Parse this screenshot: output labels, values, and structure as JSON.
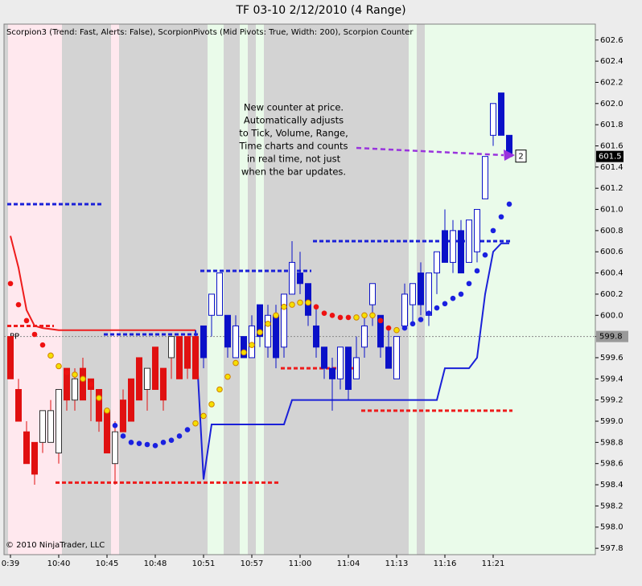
{
  "chart_data": {
    "type": "candlestick",
    "title": "TF 03-10  2/12/2010 (4 Range)",
    "indicator_label": "Scorpion3 (Trend: Fast, Alerts: False), ScorpionPivots (Mid Pivots: True, Width: 200), Scorpion Counter",
    "copyright": "© 2010 NinjaTrader, LLC",
    "annotation": [
      "New counter at price.",
      "Automatically adjusts",
      "to Tick, Volume, Range,",
      "Time charts and counts",
      "in real time, not just",
      "when the bar updates."
    ],
    "counter": 2,
    "last_price": 601.5,
    "pivot_pp": {
      "label": "PP",
      "value": 599.8
    },
    "categories": [
      "0:39",
      null,
      null,
      null,
      null,
      null,
      "10:40",
      null,
      null,
      null,
      null,
      null,
      "10:45",
      null,
      null,
      null,
      null,
      null,
      "10:48",
      null,
      null,
      null,
      null,
      null,
      "10:51",
      null,
      null,
      null,
      null,
      null,
      "10:57",
      null,
      null,
      null,
      null,
      null,
      "11:00",
      null,
      null,
      null,
      null,
      null,
      "11:04",
      null,
      null,
      null,
      null,
      null,
      "11:13",
      null,
      null,
      null,
      null,
      null,
      "11:16",
      null,
      null,
      null,
      null,
      null,
      "11:21",
      null,
      null
    ],
    "open": [
      599.8,
      599.3,
      598.9,
      598.8,
      598.8,
      598.8,
      598.7,
      599.5,
      599.2,
      599.5,
      599.4,
      599.3,
      599.1,
      598.6,
      599.2,
      599.4,
      599.6,
      599.3,
      599.7,
      599.5,
      599.6,
      599.8,
      599.8,
      599.8,
      599.9,
      600.0,
      600.0,
      600.0,
      599.6,
      599.8,
      599.6,
      600.1,
      599.7,
      600.0,
      599.7,
      600.2,
      600.4,
      600.3,
      599.9,
      599.7,
      599.5,
      599.4,
      599.7,
      599.4,
      599.7,
      600.1,
      600.0,
      599.7,
      599.4,
      599.9,
      600.1,
      600.4,
      600.0,
      600.4,
      600.8,
      600.5,
      600.8,
      600.5,
      600.6,
      601.1,
      601.7,
      602.1,
      601.7
    ],
    "high": [
      599.8,
      599.4,
      599.0,
      598.8,
      599.1,
      599.2,
      599.3,
      599.5,
      599.5,
      599.6,
      599.4,
      599.3,
      599.1,
      599.0,
      599.3,
      599.4,
      599.6,
      599.5,
      599.7,
      599.5,
      599.8,
      599.8,
      599.8,
      599.8,
      599.9,
      600.2,
      600.4,
      600.0,
      600.0,
      599.8,
      600.0,
      600.1,
      600.1,
      600.1,
      600.2,
      600.7,
      600.6,
      600.3,
      600.1,
      599.7,
      599.6,
      599.7,
      599.7,
      599.8,
      600.0,
      600.3,
      600.0,
      599.9,
      599.8,
      600.3,
      600.3,
      600.5,
      600.4,
      600.6,
      601.0,
      600.9,
      600.9,
      600.9,
      601.0,
      601.5,
      602.0,
      602.1,
      601.7
    ],
    "low": [
      599.4,
      599.0,
      598.6,
      598.4,
      598.7,
      598.8,
      598.6,
      599.1,
      599.1,
      599.2,
      599.0,
      598.9,
      598.7,
      598.4,
      598.9,
      599.0,
      599.2,
      599.1,
      599.3,
      599.1,
      599.4,
      599.4,
      599.4,
      599.4,
      599.5,
      599.8,
      600.0,
      599.6,
      599.6,
      599.6,
      599.6,
      599.7,
      599.6,
      599.5,
      599.6,
      600.2,
      600.2,
      599.9,
      599.6,
      599.4,
      599.1,
      599.3,
      599.2,
      599.4,
      599.6,
      599.9,
      599.6,
      599.5,
      599.4,
      599.9,
      599.9,
      600.0,
      599.9,
      600.2,
      600.5,
      600.4,
      600.4,
      600.5,
      600.5,
      601.1,
      601.6,
      601.7,
      601.5
    ],
    "close": [
      599.4,
      599.0,
      598.6,
      598.5,
      599.1,
      599.1,
      599.3,
      599.2,
      599.4,
      599.2,
      599.3,
      599.0,
      598.7,
      598.9,
      598.9,
      599.0,
      599.2,
      599.5,
      599.3,
      599.2,
      599.8,
      599.4,
      599.5,
      599.4,
      599.6,
      600.2,
      600.4,
      599.7,
      599.9,
      599.6,
      599.9,
      599.8,
      600.0,
      599.6,
      600.2,
      600.5,
      600.3,
      600.0,
      599.7,
      599.5,
      599.4,
      599.7,
      599.3,
      599.6,
      599.9,
      600.3,
      599.7,
      599.5,
      599.8,
      600.2,
      600.3,
      600.1,
      600.4,
      600.6,
      600.5,
      600.8,
      600.4,
      600.9,
      601.0,
      601.5,
      602.0,
      601.7,
      601.5
    ],
    "candle_colors": [
      "#e01010",
      "#e01010",
      "#e01010",
      "#e01010",
      "#e01010",
      "#e01010",
      "#e01010",
      "#e01010",
      "#e01010",
      "#e01010",
      "#e01010",
      "#e01010",
      "#e01010",
      "#e01010",
      "#e01010",
      "#e01010",
      "#e01010",
      "#e01010",
      "#e01010",
      "#e01010",
      "#e01010",
      "#e01010",
      "#e01010",
      "#e01010",
      "#0a10c8",
      "#0a10c8",
      "#0a10c8",
      "#0a10c8",
      "#0a10c8",
      "#0a10c8",
      "#0a10c8",
      "#0a10c8",
      "#0a10c8",
      "#0a10c8",
      "#0a10c8",
      "#0a10c8",
      "#0a10c8",
      "#0a10c8",
      "#0a10c8",
      "#0a10c8",
      "#0a10c8",
      "#0a10c8",
      "#0a10c8",
      "#0a10c8",
      "#0a10c8",
      "#0a10c8",
      "#0a10c8",
      "#0a10c8",
      "#0a10c8",
      "#0a10c8",
      "#0a10c8",
      "#0a10c8",
      "#0a10c8",
      "#0a10c8",
      "#0a10c8",
      "#0a10c8",
      "#0a10c8",
      "#0a10c8",
      "#0a10c8",
      "#0a10c8",
      "#0a10c8",
      "#0a10c8",
      "#0a10c8"
    ],
    "lines": [
      {
        "color": "#ee1c1c",
        "values": [
          600.75,
          600.45,
          600.05,
          599.9,
          599.88,
          599.87,
          599.86,
          599.86,
          599.86,
          599.86,
          599.86,
          599.86,
          599.86,
          599.86,
          599.86,
          599.86,
          599.86,
          599.86,
          599.86,
          599.86,
          599.86,
          599.86,
          599.86,
          599.86,
          null,
          null,
          null,
          null,
          null,
          null,
          null,
          null,
          null,
          null,
          null,
          null,
          null,
          null,
          null,
          null,
          null,
          null,
          null,
          null,
          null,
          null,
          null,
          null,
          null,
          null,
          null,
          null,
          null,
          null,
          null,
          null,
          null,
          null,
          null,
          null,
          null,
          null,
          null
        ]
      },
      {
        "color": "#1a20d8",
        "values": [
          null,
          null,
          null,
          null,
          null,
          null,
          null,
          null,
          null,
          null,
          null,
          null,
          null,
          null,
          null,
          null,
          null,
          null,
          null,
          null,
          null,
          null,
          null,
          599.86,
          598.45,
          598.97,
          598.97,
          598.97,
          598.97,
          598.97,
          598.97,
          598.97,
          598.97,
          598.97,
          598.97,
          599.2,
          599.2,
          599.2,
          599.2,
          599.2,
          599.2,
          599.2,
          599.2,
          599.2,
          599.2,
          599.2,
          599.2,
          599.2,
          599.2,
          599.2,
          599.2,
          599.2,
          599.2,
          599.2,
          599.5,
          599.5,
          599.5,
          599.5,
          599.6,
          600.2,
          600.6,
          600.68,
          600.68
        ]
      }
    ],
    "dots": {
      "values": [
        600.3,
        600.1,
        599.95,
        599.82,
        599.72,
        599.62,
        599.52,
        599.46,
        599.44,
        599.4,
        599.35,
        599.22,
        599.1,
        598.96,
        598.86,
        598.8,
        598.79,
        598.78,
        598.77,
        598.8,
        598.82,
        598.86,
        598.92,
        598.98,
        599.05,
        599.16,
        599.3,
        599.42,
        599.55,
        599.65,
        599.72,
        599.84,
        599.92,
        600.0,
        600.08,
        600.1,
        600.12,
        600.12,
        600.08,
        600.02,
        600.0,
        599.98,
        599.98,
        599.98,
        600.0,
        600.0,
        599.95,
        599.88,
        599.86,
        599.88,
        599.92,
        599.96,
        600.02,
        600.07,
        600.11,
        600.16,
        600.2,
        600.3,
        600.42,
        600.57,
        600.8,
        600.93,
        601.05
      ],
      "colors": [
        "#ee1111",
        "#ee1111",
        "#ee1111",
        "#ee1111",
        "#ee1111",
        "#f5e000",
        "#f5e000",
        "#ee1111",
        "#f5e000",
        "#f5e000",
        "#ee1111",
        "#f5e000",
        "#f5e000",
        "#1a20e0",
        "#1a20e0",
        "#1a20e0",
        "#1a20e0",
        "#1a20e0",
        "#1a20e0",
        "#1a20e0",
        "#1a20e0",
        "#1a20e0",
        "#1a20e0",
        "#f5e000",
        "#f5e000",
        "#f5e000",
        "#f5e000",
        "#f5e000",
        "#f5e000",
        "#f5e000",
        "#f5e000",
        "#f5e000",
        "#f5e000",
        "#f5e000",
        "#f5e000",
        "#f5e000",
        "#f5e000",
        "#f5e000",
        "#ee1111",
        "#ee1111",
        "#ee1111",
        "#ee1111",
        "#ee1111",
        "#f5e000",
        "#f5e000",
        "#f5e000",
        "#ee1111",
        "#ee1111",
        "#f5e000",
        "#1a20e0",
        "#1a20e0",
        "#1a20e0",
        "#1a20e0",
        "#1a20e0",
        "#1a20e0",
        "#1a20e0",
        "#1a20e0",
        "#1a20e0",
        "#1a20e0",
        "#1a20e0",
        "#1a20e0",
        "#1a20e0",
        "#1a20e0"
      ]
    },
    "levels": [
      {
        "value": 601.05,
        "from": 0,
        "to": 11,
        "color": "#1a20d8"
      },
      {
        "value": 599.9,
        "from": 0,
        "to": 5,
        "color": "#ee1c1c"
      },
      {
        "value": 598.42,
        "from": 6,
        "to": 33,
        "color": "#ee1c1c"
      },
      {
        "value": 599.82,
        "from": 12,
        "to": 23,
        "color": "#1a20d8"
      },
      {
        "value": 600.42,
        "from": 24,
        "to": 37,
        "color": "#1a20d8"
      },
      {
        "value": 599.5,
        "from": 34,
        "to": 43,
        "color": "#ee1c1c"
      },
      {
        "value": 600.7,
        "from": 38,
        "to": 62,
        "color": "#1a20d8"
      },
      {
        "value": 599.1,
        "from": 44,
        "to": 62,
        "color": "#ee1c1c"
      }
    ],
    "ylim": [
      597.74,
      602.75
    ],
    "yticks": [
      597.8,
      {
        "value": 598,
        "label": "598.0"
      },
      598.2,
      598.4,
      598.6,
      598.8,
      {
        "value": 599,
        "label": "599.0"
      },
      599.2,
      599.4,
      599.6,
      599.8,
      {
        "value": 600,
        "label": "600.0"
      },
      600.2,
      600.4,
      600.6,
      600.8,
      {
        "value": 601,
        "label": "601.0"
      },
      601.2,
      601.4,
      601.6,
      601.8,
      {
        "value": 602,
        "label": "602.0"
      },
      602.2,
      602.4,
      602.6
    ]
  }
}
